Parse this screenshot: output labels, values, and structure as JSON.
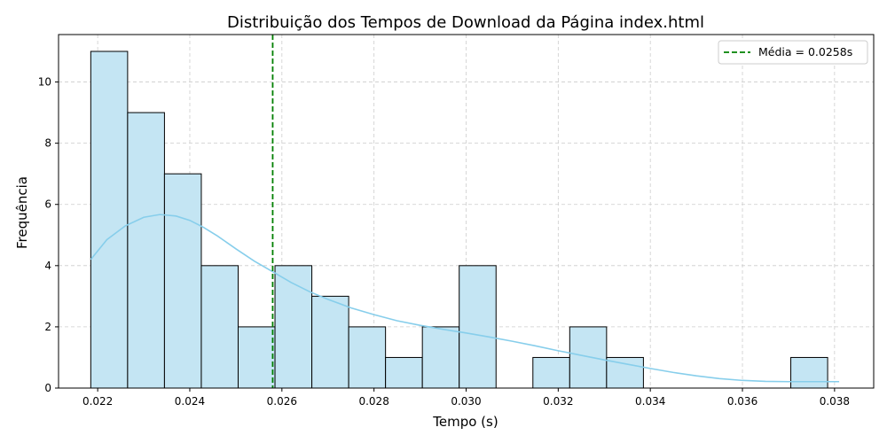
{
  "chart_data": {
    "type": "histogram",
    "title": "Distribuição dos Tempos de Download da Página index.html",
    "xlabel": "Tempo (s)",
    "ylabel": "Frequência",
    "xlim": [
      0.02115,
      0.03885
    ],
    "ylim": [
      0,
      11.55
    ],
    "xticks": [
      0.022,
      0.024,
      0.026,
      0.028,
      0.03,
      0.032,
      0.034,
      0.036,
      0.038
    ],
    "xtick_labels": [
      "0.022",
      "0.024",
      "0.026",
      "0.028",
      "0.030",
      "0.032",
      "0.034",
      "0.036",
      "0.038"
    ],
    "yticks": [
      0,
      2,
      4,
      6,
      8,
      10
    ],
    "ytick_labels": [
      "0",
      "2",
      "4",
      "6",
      "8",
      "10"
    ],
    "grid": true,
    "bins": [
      {
        "x0": 0.02185,
        "x1": 0.02265,
        "count": 11
      },
      {
        "x0": 0.02265,
        "x1": 0.02345,
        "count": 9
      },
      {
        "x0": 0.02345,
        "x1": 0.02425,
        "count": 7
      },
      {
        "x0": 0.02425,
        "x1": 0.02505,
        "count": 4
      },
      {
        "x0": 0.02505,
        "x1": 0.02585,
        "count": 2
      },
      {
        "x0": 0.02585,
        "x1": 0.02665,
        "count": 4
      },
      {
        "x0": 0.02665,
        "x1": 0.02745,
        "count": 3
      },
      {
        "x0": 0.02745,
        "x1": 0.02825,
        "count": 2
      },
      {
        "x0": 0.02825,
        "x1": 0.02905,
        "count": 1
      },
      {
        "x0": 0.02905,
        "x1": 0.02985,
        "count": 2
      },
      {
        "x0": 0.02985,
        "x1": 0.03065,
        "count": 4
      },
      {
        "x0": 0.03065,
        "x1": 0.03145,
        "count": 0
      },
      {
        "x0": 0.03145,
        "x1": 0.03225,
        "count": 1
      },
      {
        "x0": 0.03225,
        "x1": 0.03305,
        "count": 2
      },
      {
        "x0": 0.03305,
        "x1": 0.03385,
        "count": 1
      },
      {
        "x0": 0.03385,
        "x1": 0.03465,
        "count": 0
      },
      {
        "x0": 0.03465,
        "x1": 0.03545,
        "count": 0
      },
      {
        "x0": 0.03545,
        "x1": 0.03625,
        "count": 0
      },
      {
        "x0": 0.03625,
        "x1": 0.03705,
        "count": 0
      },
      {
        "x0": 0.03705,
        "x1": 0.03785,
        "count": 1
      }
    ],
    "kde": {
      "x": [
        0.02185,
        0.0222,
        0.0226,
        0.023,
        0.02335,
        0.0237,
        0.024,
        0.0243,
        0.0246,
        0.025,
        0.0254,
        0.0258,
        0.0262,
        0.0266,
        0.027,
        0.0275,
        0.028,
        0.0285,
        0.029,
        0.0295,
        0.03,
        0.0305,
        0.031,
        0.0315,
        0.032,
        0.0325,
        0.033,
        0.0335,
        0.034,
        0.0345,
        0.035,
        0.0355,
        0.036,
        0.0365,
        0.037,
        0.0375,
        0.0381
      ],
      "y": [
        4.2,
        4.85,
        5.3,
        5.58,
        5.67,
        5.62,
        5.48,
        5.25,
        4.97,
        4.55,
        4.15,
        3.8,
        3.45,
        3.15,
        2.9,
        2.62,
        2.4,
        2.2,
        2.05,
        1.92,
        1.8,
        1.67,
        1.53,
        1.38,
        1.22,
        1.07,
        0.92,
        0.78,
        0.64,
        0.51,
        0.4,
        0.31,
        0.25,
        0.22,
        0.21,
        0.21,
        0.21
      ]
    },
    "mean_line": {
      "x": 0.0258,
      "label": "Média = 0.0258s"
    },
    "legend_position": "upper right",
    "colors": {
      "bar_fill": "#c4e5f3",
      "bar_edge": "#000000",
      "kde": "#87ceeb",
      "mean": "#008000",
      "grid": "#cccccc"
    }
  }
}
